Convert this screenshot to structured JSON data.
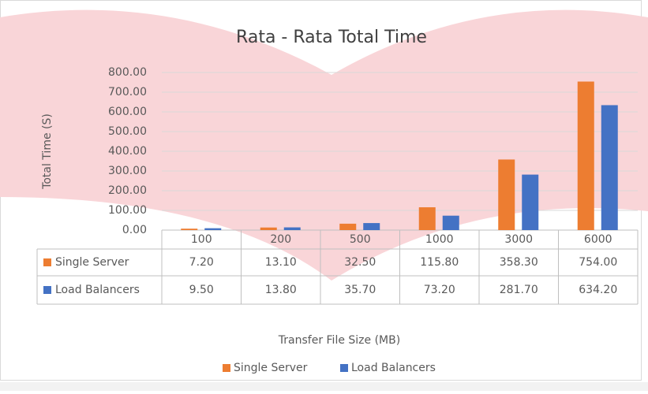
{
  "chart_data": {
    "type": "bar",
    "title": "Rata - Rata Total Time",
    "x_label": "Transfer File Size (MB)",
    "y_label": "Total Time (S)",
    "categories": [
      "100",
      "200",
      "500",
      "1000",
      "3000",
      "6000"
    ],
    "series": [
      {
        "name": "Single Server",
        "color": "#ed7d31",
        "values": [
          7.2,
          13.1,
          32.5,
          115.8,
          358.3,
          754.0
        ],
        "value_labels": [
          "7.20",
          "13.10",
          "32.50",
          "115.80",
          "358.30",
          "754.00"
        ]
      },
      {
        "name": "Load Balancers",
        "color": "#4472c4",
        "values": [
          9.5,
          13.8,
          35.7,
          73.2,
          281.7,
          634.2
        ],
        "value_labels": [
          "9.50",
          "13.80",
          "35.70",
          "73.20",
          "281.70",
          "634.20"
        ]
      }
    ],
    "ylim": [
      0,
      800
    ],
    "yticks": [
      {
        "value": 0,
        "label": "0.00"
      },
      {
        "value": 100,
        "label": "100.00"
      },
      {
        "value": 200,
        "label": "200.00"
      },
      {
        "value": 300,
        "label": "300.00"
      },
      {
        "value": 400,
        "label": "400.00"
      },
      {
        "value": 500,
        "label": "500.00"
      },
      {
        "value": 600,
        "label": "600.00"
      },
      {
        "value": 700,
        "label": "700.00"
      },
      {
        "value": 800,
        "label": "800.00"
      }
    ],
    "grid": true,
    "legend": "bottom",
    "data_table": true
  }
}
